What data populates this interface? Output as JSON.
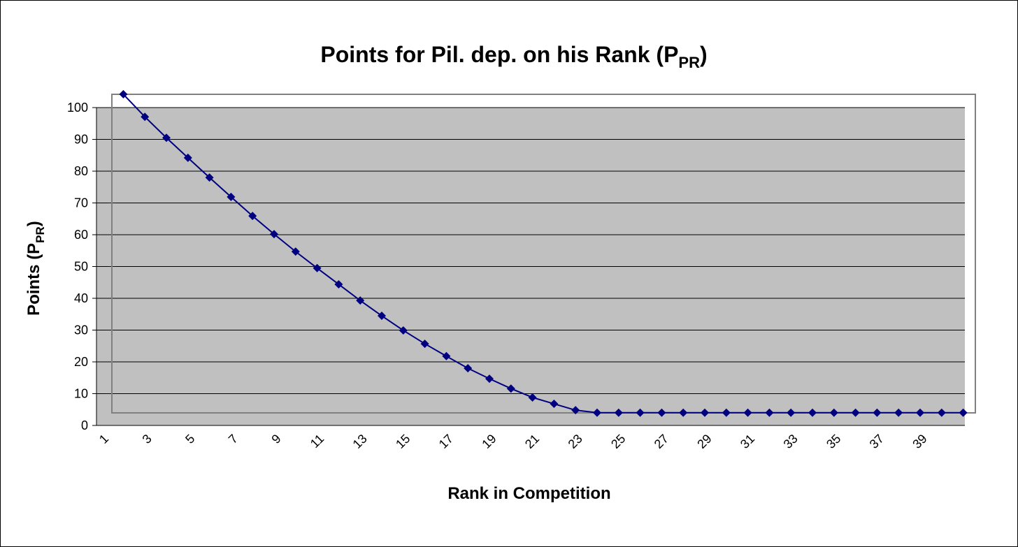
{
  "chart_data": {
    "type": "line",
    "title": {
      "text": "Points for Pil. dep. on  his Rank (P",
      "sub": "PR",
      "end": ")"
    },
    "x_label": "Rank in Competition",
    "y_label": {
      "text": "Points (P",
      "sub": "PR",
      "end": ")"
    },
    "categories": [
      1,
      null,
      3,
      null,
      5,
      null,
      7,
      null,
      9,
      null,
      11,
      null,
      13,
      null,
      15,
      null,
      17,
      null,
      19,
      null,
      21,
      null,
      23,
      null,
      25,
      null,
      27,
      null,
      29,
      null,
      31,
      null,
      33,
      null,
      35,
      null,
      37,
      null,
      39,
      null
    ],
    "series": [
      {
        "color": "#000080",
        "values": [
          104.2,
          97.1,
          90.5,
          84.2,
          78.0,
          71.9,
          65.9,
          60.2,
          54.7,
          49.5,
          44.4,
          39.3,
          34.5,
          29.9,
          25.7,
          21.8,
          18.0,
          14.7,
          11.6,
          8.8,
          6.8,
          4.8,
          4,
          4,
          4,
          4,
          4,
          4,
          4,
          4,
          4,
          4,
          4,
          4,
          4,
          4,
          4,
          4,
          4,
          4
        ]
      }
    ],
    "ylim": [
      0,
      100
    ],
    "yticks": [
      0,
      10,
      20,
      30,
      40,
      50,
      60,
      70,
      80,
      90,
      100
    ],
    "grid": true
  }
}
